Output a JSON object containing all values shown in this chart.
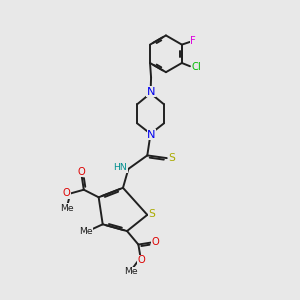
{
  "bg_color": "#e8e8e8",
  "bond_color": "#202020",
  "bond_width": 1.4,
  "atom_colors": {
    "N": "#0000ee",
    "S": "#aaaa00",
    "O": "#dd0000",
    "Cl": "#00bb00",
    "F": "#dd00dd",
    "C": "#202020",
    "HN": "#009090"
  },
  "fs": 7.2,
  "xlim": [
    -0.5,
    5.8
  ],
  "ylim": [
    -1.2,
    9.8
  ]
}
